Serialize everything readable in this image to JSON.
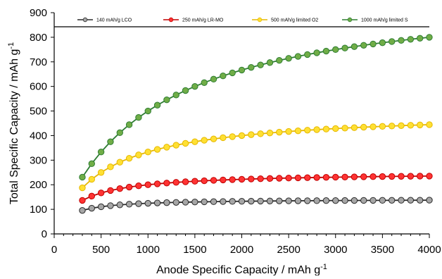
{
  "chart_data": {
    "type": "line",
    "title": "",
    "xlabel": "Anode Specific Capacity / mAh g",
    "xlabel_sup": "-1",
    "ylabel": "Total Specific Capacity / mAh g",
    "ylabel_sup": "-1",
    "xlim": [
      0,
      4000
    ],
    "ylim": [
      0,
      900
    ],
    "x_ticks": [
      "0",
      "500",
      "1000",
      "1500",
      "2000",
      "2500",
      "3000",
      "3500",
      "4000"
    ],
    "y_ticks": [
      "0",
      "100",
      "200",
      "300",
      "400",
      "500",
      "600",
      "700",
      "800",
      "900"
    ],
    "grid": false,
    "legend_position": "top",
    "x": [
      300,
      400,
      500,
      600,
      700,
      800,
      900,
      1000,
      1100,
      1200,
      1300,
      1400,
      1500,
      1600,
      1700,
      1800,
      1900,
      2000,
      2100,
      2200,
      2300,
      2400,
      2500,
      2600,
      2700,
      2800,
      2900,
      3000,
      3100,
      3200,
      3300,
      3400,
      3500,
      3600,
      3700,
      3800,
      3900,
      4000
    ],
    "series": [
      {
        "name": "140 mAh/g LCO",
        "color": "#2b2b2b",
        "fill": "#a6a6a6",
        "values": [
          95.5,
          104.5,
          110.5,
          114.9,
          118.2,
          120.8,
          122.9,
          124.6,
          126.0,
          127.2,
          128.2,
          129.1,
          129.9,
          130.6,
          131.2,
          131.8,
          132.3,
          132.7,
          133.1,
          133.5,
          133.8,
          134.2,
          134.5,
          134.7,
          135.0,
          135.2,
          135.5,
          135.7,
          135.9,
          136.1,
          136.2,
          136.4,
          136.6,
          136.7,
          136.9,
          137.0,
          137.1,
          137.3
        ]
      },
      {
        "name": "250 mAh/g LR-MO",
        "color": "#c00000",
        "fill": "#ff3333",
        "values": [
          136.4,
          153.8,
          166.7,
          176.5,
          184.2,
          190.5,
          195.7,
          200.0,
          203.7,
          206.9,
          209.7,
          212.1,
          214.3,
          216.2,
          217.9,
          219.5,
          220.9,
          222.2,
          223.4,
          224.5,
          225.5,
          226.4,
          227.3,
          228.1,
          228.8,
          229.5,
          230.2,
          230.8,
          231.4,
          232.0,
          232.5,
          233.0,
          233.4,
          233.9,
          234.3,
          234.7,
          235.1,
          235.3
        ]
      },
      {
        "name": "500 mAh/g limited O2",
        "color": "#e6b800",
        "fill": "#ffe033",
        "values": [
          187.5,
          222.2,
          250.0,
          272.7,
          291.7,
          307.7,
          321.4,
          333.3,
          343.8,
          352.9,
          361.1,
          368.4,
          375.0,
          381.0,
          386.4,
          391.3,
          395.8,
          400.0,
          403.8,
          407.4,
          410.7,
          413.8,
          416.7,
          419.4,
          421.9,
          424.2,
          426.5,
          428.6,
          430.6,
          432.4,
          434.2,
          435.9,
          437.5,
          439.0,
          440.5,
          441.9,
          443.2,
          444.4
        ]
      },
      {
        "name": "1000 mAh/g limited S",
        "color": "#2e7d32",
        "fill": "#70ad47",
        "values": [
          230.8,
          285.7,
          333.3,
          375.0,
          411.8,
          444.4,
          473.7,
          500.0,
          523.8,
          545.5,
          565.2,
          583.3,
          600.0,
          615.4,
          629.6,
          642.9,
          655.2,
          666.7,
          677.4,
          687.5,
          697.0,
          705.9,
          714.3,
          722.2,
          729.7,
          736.8,
          743.6,
          750.0,
          756.1,
          761.9,
          767.4,
          772.7,
          777.8,
          782.6,
          787.2,
          791.7,
          795.9,
          800.0
        ]
      }
    ]
  }
}
